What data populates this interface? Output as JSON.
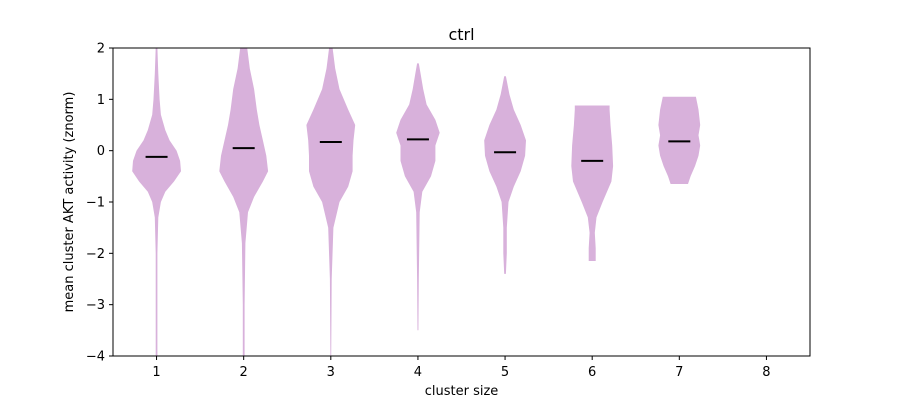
{
  "chart_data": {
    "type": "violin",
    "title": "ctrl",
    "xlabel": "cluster size",
    "ylabel": "mean cluster AKT activity (znorm)",
    "x_ticks": [
      "1",
      "2",
      "3",
      "4",
      "5",
      "6",
      "7",
      "8"
    ],
    "y_ticks": [
      "−4",
      "−3",
      "−2",
      "−1",
      "0",
      "1",
      "2"
    ],
    "y_tick_values": [
      -4,
      -3,
      -2,
      -1,
      0,
      1,
      2
    ],
    "xlim": [
      0.5,
      8.5
    ],
    "ylim": [
      -4,
      2
    ],
    "grid": false,
    "color": "#d8b1db",
    "median_color": "#000000",
    "violins": [
      {
        "x": 1,
        "median": -0.12,
        "min": -4.0,
        "max": 2.0,
        "profile": [
          [
            -4.0,
            0.01
          ],
          [
            -3.0,
            0.01
          ],
          [
            -2.0,
            0.01
          ],
          [
            -1.3,
            0.02
          ],
          [
            -1.0,
            0.05
          ],
          [
            -0.8,
            0.1
          ],
          [
            -0.6,
            0.2
          ],
          [
            -0.4,
            0.28
          ],
          [
            -0.2,
            0.27
          ],
          [
            0.0,
            0.23
          ],
          [
            0.2,
            0.15
          ],
          [
            0.4,
            0.1
          ],
          [
            0.7,
            0.05
          ],
          [
            1.0,
            0.035
          ],
          [
            1.5,
            0.02
          ],
          [
            2.0,
            0.01
          ]
        ]
      },
      {
        "x": 2,
        "median": 0.05,
        "min": -4.0,
        "max": 2.0,
        "profile": [
          [
            -4.0,
            0.01
          ],
          [
            -3.0,
            0.01
          ],
          [
            -1.8,
            0.02
          ],
          [
            -1.2,
            0.05
          ],
          [
            -0.9,
            0.12
          ],
          [
            -0.6,
            0.22
          ],
          [
            -0.4,
            0.28
          ],
          [
            -0.1,
            0.26
          ],
          [
            0.2,
            0.22
          ],
          [
            0.5,
            0.18
          ],
          [
            0.8,
            0.15
          ],
          [
            1.2,
            0.12
          ],
          [
            1.6,
            0.07
          ],
          [
            2.0,
            0.04
          ]
        ]
      },
      {
        "x": 3,
        "median": 0.17,
        "min": -4.0,
        "max": 2.0,
        "profile": [
          [
            -4.0,
            0.005
          ],
          [
            -2.5,
            0.01
          ],
          [
            -1.5,
            0.03
          ],
          [
            -1.0,
            0.1
          ],
          [
            -0.7,
            0.2
          ],
          [
            -0.4,
            0.25
          ],
          [
            -0.1,
            0.25
          ],
          [
            0.2,
            0.26
          ],
          [
            0.5,
            0.28
          ],
          [
            0.8,
            0.2
          ],
          [
            1.2,
            0.1
          ],
          [
            1.6,
            0.05
          ],
          [
            2.0,
            0.02
          ]
        ]
      },
      {
        "x": 4,
        "median": 0.22,
        "min": -3.5,
        "max": 1.7,
        "profile": [
          [
            -3.5,
            0.005
          ],
          [
            -2.5,
            0.01
          ],
          [
            -1.2,
            0.02
          ],
          [
            -0.8,
            0.05
          ],
          [
            -0.5,
            0.15
          ],
          [
            -0.2,
            0.2
          ],
          [
            0.1,
            0.2
          ],
          [
            0.35,
            0.25
          ],
          [
            0.6,
            0.2
          ],
          [
            0.9,
            0.1
          ],
          [
            1.2,
            0.06
          ],
          [
            1.5,
            0.03
          ],
          [
            1.7,
            0.01
          ]
        ]
      },
      {
        "x": 5,
        "median": -0.03,
        "min": -2.4,
        "max": 1.45,
        "profile": [
          [
            -2.4,
            0.01
          ],
          [
            -2.0,
            0.02
          ],
          [
            -1.5,
            0.02
          ],
          [
            -1.0,
            0.04
          ],
          [
            -0.7,
            0.1
          ],
          [
            -0.4,
            0.18
          ],
          [
            -0.1,
            0.23
          ],
          [
            0.2,
            0.24
          ],
          [
            0.5,
            0.18
          ],
          [
            0.8,
            0.1
          ],
          [
            1.1,
            0.05
          ],
          [
            1.45,
            0.01
          ]
        ]
      },
      {
        "x": 6,
        "median": -0.2,
        "min": -2.15,
        "max": 0.88,
        "profile": [
          [
            -2.15,
            0.04
          ],
          [
            -1.9,
            0.04
          ],
          [
            -1.6,
            0.03
          ],
          [
            -1.3,
            0.05
          ],
          [
            -1.0,
            0.12
          ],
          [
            -0.6,
            0.22
          ],
          [
            -0.3,
            0.24
          ],
          [
            0.1,
            0.23
          ],
          [
            0.5,
            0.21
          ],
          [
            0.8,
            0.2
          ],
          [
            0.88,
            0.2
          ]
        ]
      },
      {
        "x": 7,
        "median": 0.18,
        "min": -0.65,
        "max": 1.05,
        "profile": [
          [
            -0.65,
            0.1
          ],
          [
            -0.5,
            0.13
          ],
          [
            -0.3,
            0.18
          ],
          [
            -0.1,
            0.22
          ],
          [
            0.1,
            0.24
          ],
          [
            0.3,
            0.22
          ],
          [
            0.5,
            0.24
          ],
          [
            0.8,
            0.22
          ],
          [
            1.05,
            0.19
          ]
        ]
      }
    ]
  }
}
